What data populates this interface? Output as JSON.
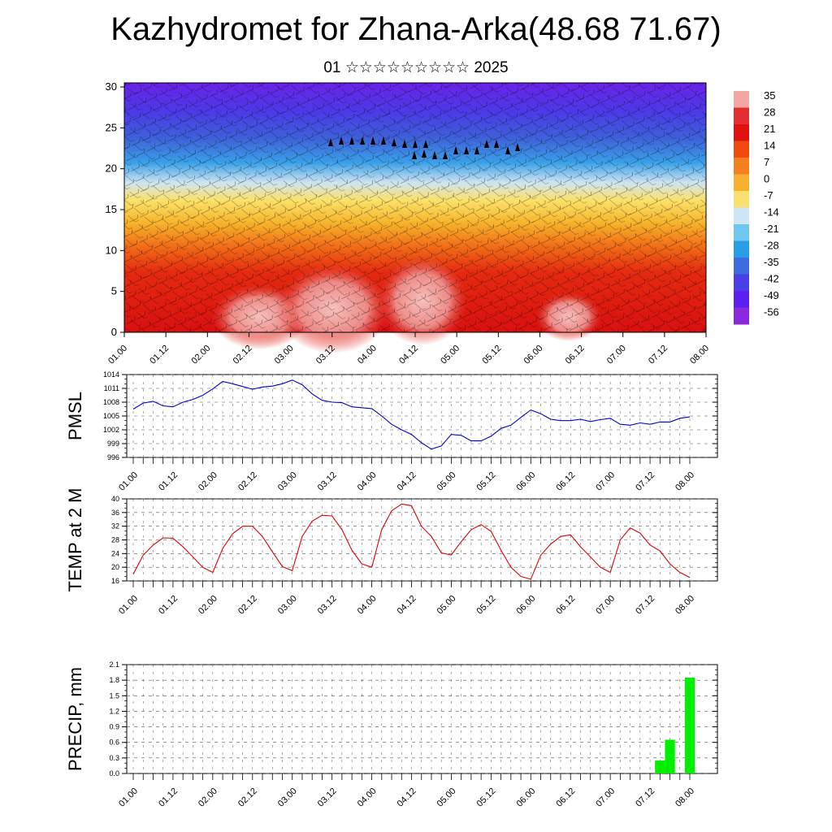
{
  "header": {
    "title": "Kazhydromet for Zhana-Arka(48.68 71.67)",
    "subtitle": "01 ☆☆☆☆☆☆☆☆☆ 2025"
  },
  "chart_data": [
    {
      "type": "heatmap",
      "description": "Time-height cross-section of temperature (colour) with wind barbs",
      "x_ticks": [
        "01.00",
        "01.12",
        "02.00",
        "02.12",
        "03.00",
        "03.12",
        "04.00",
        "04.12",
        "05.00",
        "05.12",
        "06.00",
        "06.12",
        "07.00",
        "07.12",
        "08.00"
      ],
      "y_ticks": [
        0,
        5,
        10,
        15,
        20,
        25,
        30
      ],
      "ylim": [
        0,
        30.5
      ],
      "colorbar": {
        "labels": [
          "35",
          "28",
          "21",
          "14",
          "7",
          "0",
          "-7",
          "-14",
          "-21",
          "-28",
          "-35",
          "-42",
          "-49",
          "-56"
        ],
        "colors": [
          "#f2a7a3",
          "#e23030",
          "#e01010",
          "#f04a10",
          "#f58020",
          "#f8b030",
          "#fbe070",
          "#cfe6f5",
          "#6fc6f0",
          "#2a9de8",
          "#3f6ce0",
          "#4a40e8",
          "#5a20f0",
          "#8a28e0"
        ]
      }
    },
    {
      "type": "line",
      "ylabel": "PMSL",
      "ylim": [
        996,
        1014
      ],
      "y_ticks": [
        996,
        999,
        1002,
        1005,
        1008,
        1011,
        1014
      ],
      "x_ticks": [
        "01.00",
        "01.12",
        "02.00",
        "02.12",
        "03.00",
        "03.12",
        "04.00",
        "04.12",
        "05.00",
        "05.12",
        "06.00",
        "06.12",
        "07.00",
        "07.12",
        "08.00"
      ],
      "color": "#0000cc",
      "x": [
        0,
        1,
        2,
        3,
        4,
        5,
        6,
        7,
        8,
        9,
        10,
        11,
        12,
        13,
        14,
        15,
        16,
        17,
        18,
        19,
        20,
        21,
        22,
        23,
        24,
        25,
        26,
        27,
        28,
        29,
        30,
        31,
        32,
        33,
        34,
        35,
        36,
        37,
        38,
        39,
        40,
        41,
        42,
        43,
        44,
        45,
        46,
        47,
        48,
        49,
        50,
        51,
        52,
        53,
        54,
        55,
        56
      ],
      "values": [
        1006.5,
        1007.8,
        1008.2,
        1007.2,
        1007.0,
        1008.0,
        1008.6,
        1009.5,
        1010.9,
        1012.5,
        1012.0,
        1011.4,
        1010.8,
        1011.3,
        1011.5,
        1012.0,
        1012.8,
        1011.8,
        1009.8,
        1008.4,
        1008.0,
        1007.9,
        1007.0,
        1006.8,
        1006.6,
        1005.0,
        1003.2,
        1002.0,
        1001.0,
        999.2,
        997.8,
        998.5,
        1001.0,
        1000.8,
        999.6,
        999.6,
        1000.6,
        1002.3,
        1003.0,
        1004.7,
        1006.3,
        1005.5,
        1004.3,
        1004.0,
        1004.0,
        1004.3,
        1003.8,
        1004.2,
        1004.5,
        1003.2,
        1003.0,
        1003.5,
        1003.2,
        1003.7,
        1003.7,
        1004.5,
        1004.8
      ]
    },
    {
      "type": "line",
      "ylabel": "TEMP at 2 M",
      "ylim": [
        16,
        40
      ],
      "y_ticks": [
        16,
        20,
        24,
        28,
        32,
        36,
        40
      ],
      "x_ticks": [
        "01.00",
        "01.12",
        "02.00",
        "02.12",
        "03.00",
        "03.12",
        "04.00",
        "04.12",
        "05.00",
        "05.12",
        "06.00",
        "06.12",
        "07.00",
        "07.12",
        "08.00"
      ],
      "color": "#dd0000",
      "x": [
        0,
        1,
        2,
        3,
        4,
        5,
        6,
        7,
        8,
        9,
        10,
        11,
        12,
        13,
        14,
        15,
        16,
        17,
        18,
        19,
        20,
        21,
        22,
        23,
        24,
        25,
        26,
        27,
        28,
        29,
        30,
        31,
        32,
        33,
        34,
        35,
        36,
        37,
        38,
        39,
        40,
        41,
        42,
        43,
        44,
        45,
        46,
        47,
        48,
        49,
        50,
        51,
        52,
        53,
        54,
        55,
        56
      ],
      "values": [
        18.0,
        23.5,
        26.5,
        28.6,
        28.5,
        26.0,
        23.0,
        20.0,
        18.5,
        25.5,
        29.8,
        32.0,
        32.0,
        29.0,
        24.5,
        20.2,
        19.0,
        29.0,
        33.5,
        35.2,
        35.0,
        31.0,
        25.0,
        21.0,
        20.0,
        31.0,
        36.5,
        38.5,
        38.0,
        32.0,
        29.0,
        24.2,
        23.6,
        27.5,
        31.0,
        32.5,
        30.5,
        25.0,
        20.0,
        17.3,
        16.5,
        23.5,
        26.8,
        29.0,
        29.5,
        26.0,
        23.0,
        20.0,
        18.5,
        28.0,
        31.5,
        30.0,
        26.5,
        24.8,
        21.0,
        18.5,
        17.0
      ]
    },
    {
      "type": "bar",
      "ylabel": "PRECIP, mm",
      "ylim": [
        0,
        2.1
      ],
      "y_ticks": [
        "0.0",
        "0.3",
        "0.6",
        "0.9",
        "1.2",
        "1.5",
        "1.8",
        "2.1"
      ],
      "x_ticks": [
        "01.00",
        "01.12",
        "02.00",
        "02.12",
        "03.00",
        "03.12",
        "04.00",
        "04.12",
        "05.00",
        "05.12",
        "06.00",
        "06.12",
        "07.00",
        "07.12",
        "08.00"
      ],
      "color": "#00ee00",
      "bars": [
        {
          "x": 53,
          "value": 0.25
        },
        {
          "x": 54,
          "value": 0.65
        },
        {
          "x": 56,
          "value": 1.85
        }
      ]
    }
  ]
}
